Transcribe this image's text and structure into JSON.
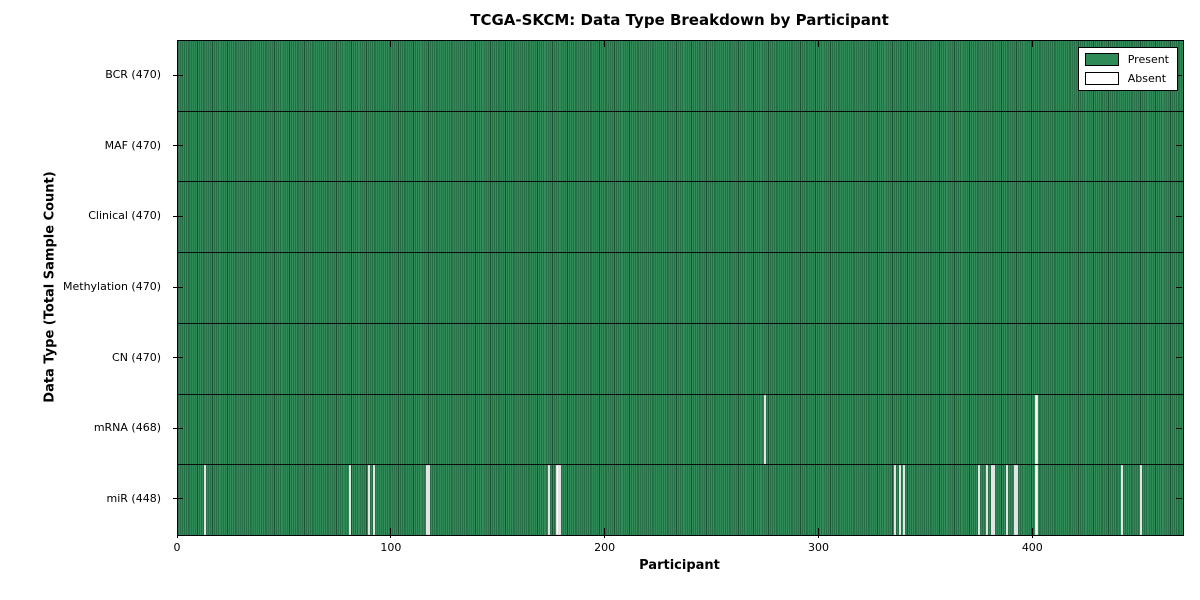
{
  "figure": {
    "title": "TCGA-SKCM: Data Type Breakdown by Participant",
    "xlabel": "Participant",
    "ylabel": "Data Type (Total Sample Count)"
  },
  "legend": {
    "entries": [
      {
        "label": "Present",
        "color": "#2E8B57"
      },
      {
        "label": "Absent",
        "color": "#FFFFFF"
      }
    ]
  },
  "chart_data": {
    "type": "heatmap",
    "title": "TCGA-SKCM: Data Type Breakdown by Participant",
    "xlabel": "Participant",
    "ylabel": "Data Type (Total Sample Count)",
    "x_ticks": [
      0,
      100,
      200,
      300,
      400
    ],
    "x_range": [
      0,
      470
    ],
    "n_participants": 470,
    "present_color": "#2E8B57",
    "absent_color": "#FFFFFF",
    "legend_position": "upper right",
    "rows": [
      {
        "name": "BCR",
        "label": "BCR (470)",
        "total": 470,
        "absent_participants": []
      },
      {
        "name": "MAF",
        "label": "MAF (470)",
        "total": 470,
        "absent_participants": []
      },
      {
        "name": "Clinical",
        "label": "Clinical (470)",
        "total": 470,
        "absent_participants": []
      },
      {
        "name": "Methylation",
        "label": "Methylation (470)",
        "total": 470,
        "absent_participants": []
      },
      {
        "name": "CN",
        "label": "CN (470)",
        "total": 470,
        "absent_participants": []
      },
      {
        "name": "mRNA",
        "label": "mRNA (468)",
        "total": 468,
        "absent_participants": [
          274,
          401
        ]
      },
      {
        "name": "miR",
        "label": "miR (448)",
        "total": 448,
        "absent_participants": [
          12,
          80,
          89,
          91,
          116,
          117,
          173,
          177,
          178,
          335,
          337,
          339,
          374,
          378,
          380,
          381,
          387,
          391,
          392,
          401,
          441,
          450
        ]
      }
    ]
  }
}
